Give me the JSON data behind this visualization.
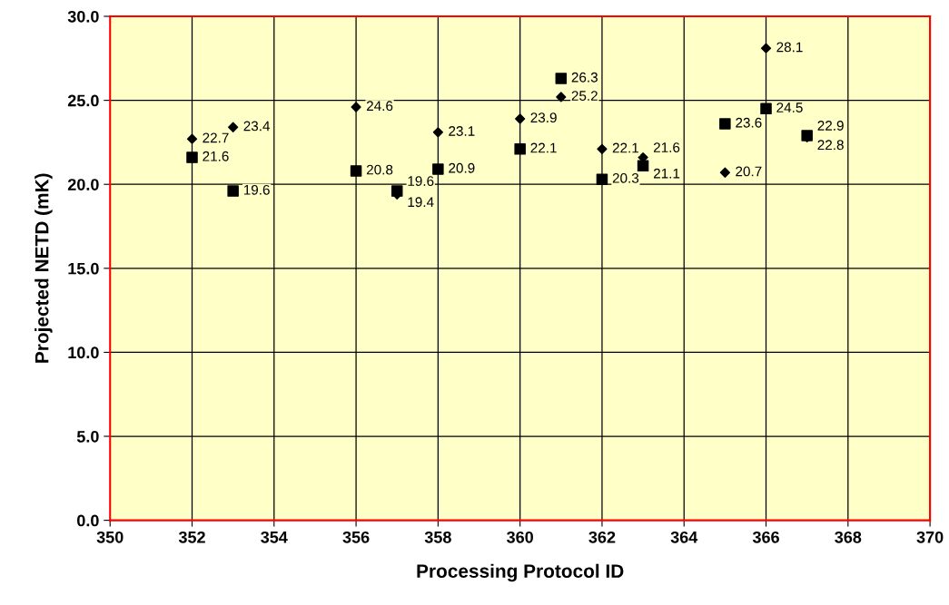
{
  "chart_data": {
    "type": "scatter",
    "xlabel": "Processing Protocol ID",
    "ylabel": "Projected NETD (mK)",
    "xlim": [
      350,
      370
    ],
    "xticks": [
      350,
      352,
      354,
      356,
      358,
      360,
      362,
      364,
      366,
      368,
      370
    ],
    "ylim": [
      0,
      30
    ],
    "yticks": [
      {
        "value": 0,
        "label": "0.0"
      },
      {
        "value": 5,
        "label": "5.0"
      },
      {
        "value": 10,
        "label": "10.0"
      },
      {
        "value": 15,
        "label": "15.0"
      },
      {
        "value": 20,
        "label": "20.0"
      },
      {
        "value": 25,
        "label": "25.0"
      },
      {
        "value": 30,
        "label": "30.0"
      }
    ],
    "grid": true,
    "data_labels": true,
    "series": [
      {
        "color": "#000000",
        "marker": "diamond",
        "x": [
          352,
          353,
          356,
          357,
          358,
          360,
          361,
          362,
          363,
          365,
          366,
          367
        ],
        "values": [
          22.7,
          23.4,
          24.6,
          19.4,
          23.1,
          23.9,
          25.2,
          22.1,
          21.6,
          20.7,
          28.1,
          22.8
        ]
      },
      {
        "color": "#000000",
        "marker": "square",
        "x": [
          352,
          353,
          356,
          357,
          358,
          360,
          361,
          362,
          363,
          365,
          366,
          367
        ],
        "values": [
          21.6,
          19.6,
          20.8,
          19.6,
          20.9,
          22.1,
          26.3,
          20.3,
          21.1,
          23.6,
          24.5,
          22.9
        ]
      }
    ]
  }
}
